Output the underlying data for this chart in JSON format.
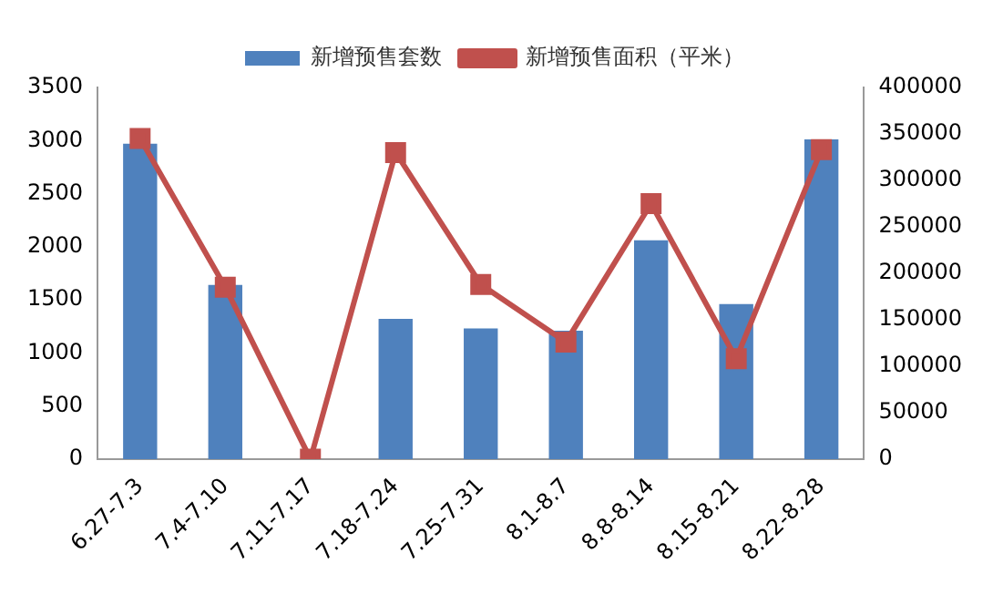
{
  "chart_data": {
    "type": "bar",
    "categories": [
      "6.27-7.3",
      "7.4-7.10",
      "7.11-7.17",
      "7.18-7.24",
      "7.25-7.31",
      "8.1-8.7",
      "8.8-8.14",
      "8.15-8.21",
      "8.22-8.28"
    ],
    "series": [
      {
        "name": "新增预售套数",
        "color": "#4f81bd",
        "values": [
          2970,
          1640,
          0,
          1320,
          1230,
          1210,
          2060,
          1460,
          3010
        ]
      },
      {
        "name": "新增预售面积（平米）",
        "type": "line",
        "axis": "y2",
        "color": "#c0504d",
        "marker": "square",
        "values": [
          345000,
          185000,
          0,
          330000,
          188000,
          126000,
          275000,
          108000,
          333000
        ]
      }
    ],
    "ylim": [
      0,
      3500
    ],
    "yticks": [
      0,
      500,
      1000,
      1500,
      2000,
      2500,
      3000,
      3500
    ],
    "y2lim": [
      0,
      400000
    ],
    "y2ticks": [
      0,
      50000,
      100000,
      150000,
      200000,
      250000,
      300000,
      350000,
      400000
    ],
    "legend": "top",
    "grid": false
  }
}
